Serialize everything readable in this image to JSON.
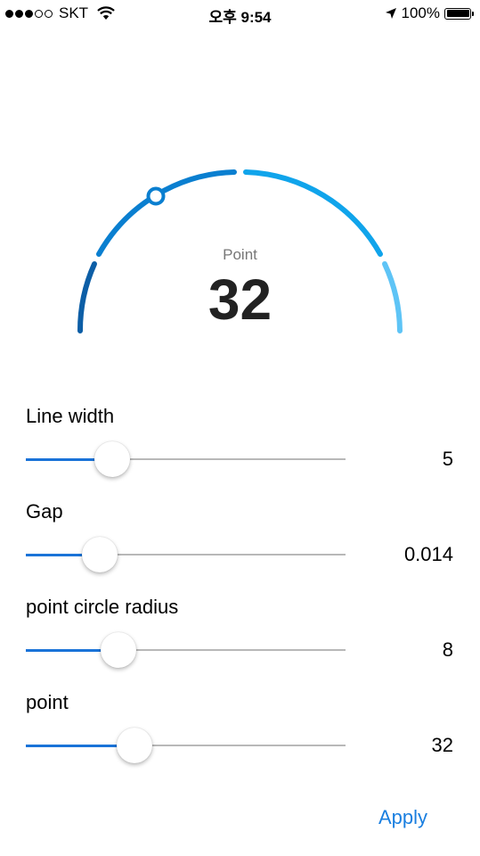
{
  "status_bar": {
    "carrier": "SKT",
    "signal_bars": 3,
    "signal_total": 5,
    "time": "오후 9:54",
    "battery": "100%"
  },
  "gauge": {
    "label": "Point",
    "value": "32",
    "point_fraction": 0.32,
    "colors": [
      "#0c5ea6",
      "#0a7fd0",
      "#10a4eb",
      "#5ec4f6"
    ]
  },
  "controls": [
    {
      "label": "Line width",
      "value": "5",
      "fraction": 0.27
    },
    {
      "label": "Gap",
      "value": "0.014",
      "fraction": 0.23
    },
    {
      "label": "point circle radius",
      "value": "8",
      "fraction": 0.29
    },
    {
      "label": "point",
      "value": "32",
      "fraction": 0.34
    }
  ],
  "apply_label": "Apply"
}
